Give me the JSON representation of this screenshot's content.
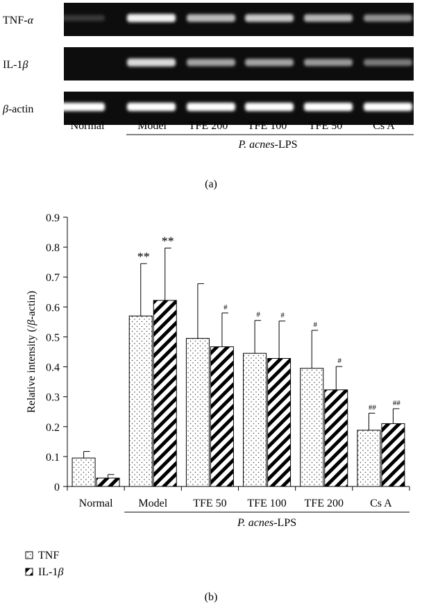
{
  "gel": {
    "rows": [
      {
        "label_html": "TNF-<tspan font-style='italic'>α</tspan>",
        "label_plain": "TNF-α",
        "intensities": [
          0.18,
          0.95,
          0.72,
          0.78,
          0.7,
          0.55
        ]
      },
      {
        "label_html": "IL-1<tspan font-style='italic'>β</tspan>",
        "label_plain": "IL-1β",
        "intensities": [
          0.0,
          0.85,
          0.62,
          0.62,
          0.58,
          0.45
        ]
      },
      {
        "label_html": "<tspan font-style='italic'>β</tspan>-actin",
        "label_plain": "β-actin",
        "intensities": [
          1.0,
          1.0,
          1.0,
          1.0,
          1.0,
          1.0
        ]
      }
    ],
    "lanes": [
      "Normal",
      "Model",
      "TFE 200",
      "TFE 100",
      "TFE 50",
      "Cs A"
    ],
    "group_label_italic": "P. acnes",
    "group_label_rest": "-LPS",
    "panel_label": "(a)"
  },
  "chart_data": {
    "type": "bar",
    "categories": [
      "Normal",
      "Model",
      "TFE 50",
      "TFE 100",
      "TFE 200",
      "Cs A"
    ],
    "series": [
      {
        "name": "TNF",
        "values": [
          0.095,
          0.57,
          0.495,
          0.445,
          0.395,
          0.188
        ],
        "errors": [
          0.022,
          0.175,
          0.183,
          0.11,
          0.127,
          0.057
        ],
        "sig": [
          "",
          "**",
          "",
          "#",
          "#",
          "##"
        ]
      },
      {
        "name": "IL-1β",
        "values": [
          0.028,
          0.622,
          0.467,
          0.428,
          0.323,
          0.21
        ],
        "errors": [
          0.012,
          0.175,
          0.113,
          0.125,
          0.078,
          0.05
        ],
        "sig": [
          "",
          "**",
          "#",
          "#",
          "#",
          "##"
        ]
      }
    ],
    "ylabel": "Relative intensity (/β-actin)",
    "ylim": [
      0,
      0.9
    ],
    "yticks": [
      "0",
      "0.1",
      "0.2",
      "0.3",
      "0.4",
      "0.5",
      "0.6",
      "0.7",
      "0.8",
      "0.9"
    ],
    "group_label": "P. acnes-LPS",
    "legend_position": "bottom-left",
    "panel_label": "(b)"
  },
  "colors": {
    "gel_background": "#0d0d0d",
    "band": "#ffffff",
    "axis": "#000000"
  }
}
